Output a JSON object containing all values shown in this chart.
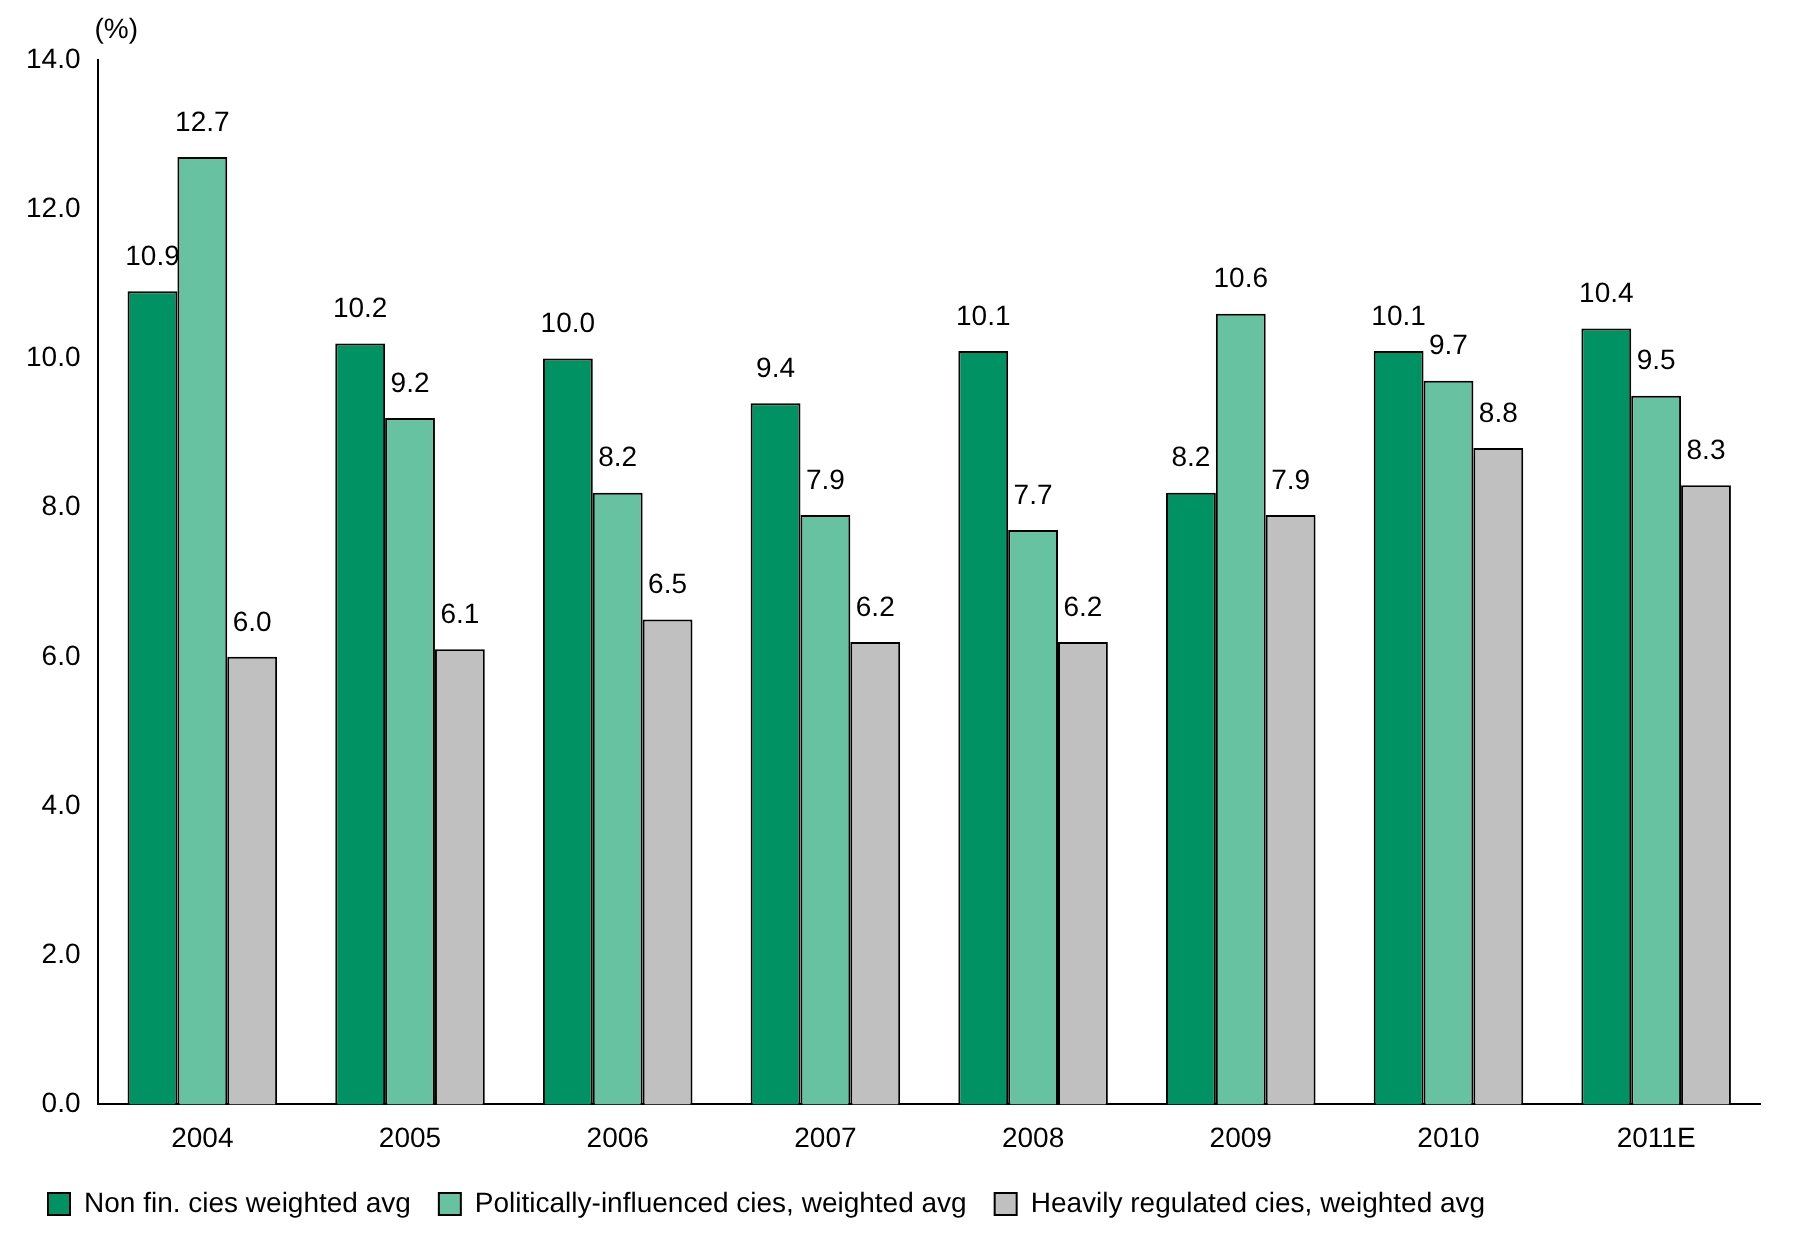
{
  "chart_data": {
    "type": "bar",
    "ylabel": "(%)",
    "categories": [
      "2004",
      "2005",
      "2006",
      "2007",
      "2008",
      "2009",
      "2010",
      "2011E"
    ],
    "series": [
      {
        "name": "Non fin. cies weighted avg",
        "color": "#009262",
        "values": [
          10.9,
          10.2,
          10.0,
          9.4,
          10.1,
          8.2,
          10.1,
          10.4
        ],
        "value_labels": [
          "10.9",
          "10.2",
          "10.0",
          "9.4",
          "10.1",
          "8.2",
          "10.1",
          "10.4"
        ]
      },
      {
        "name": "Politically-influenced cies, weighted avg",
        "color": "#66c2a0",
        "values": [
          12.7,
          9.2,
          8.2,
          7.9,
          7.7,
          10.6,
          9.7,
          9.5
        ],
        "value_labels": [
          "12.7",
          "9.2",
          "8.2",
          "7.9",
          "7.7",
          "10.6",
          "9.7",
          "9.5"
        ]
      },
      {
        "name": "Heavily regulated cies, weighted avg",
        "color": "#c0c0c0",
        "values": [
          6.0,
          6.1,
          6.5,
          6.2,
          6.2,
          7.9,
          8.8,
          8.3
        ],
        "value_labels": [
          "6.0",
          "6.1",
          "6.5",
          "6.2",
          "6.2",
          "7.9",
          "8.8",
          "8.3"
        ]
      }
    ],
    "ylim": [
      0,
      14
    ],
    "yticks": [
      {
        "value": 0,
        "label": "0.0"
      },
      {
        "value": 2,
        "label": "2.0"
      },
      {
        "value": 4,
        "label": "4.0"
      },
      {
        "value": 6,
        "label": "6.0"
      },
      {
        "value": 8,
        "label": "8.0"
      },
      {
        "value": 10,
        "label": "10.0"
      },
      {
        "value": 12,
        "label": "12.0"
      },
      {
        "value": 14,
        "label": "14.0"
      }
    ],
    "grid": false,
    "legend": "bottom"
  }
}
